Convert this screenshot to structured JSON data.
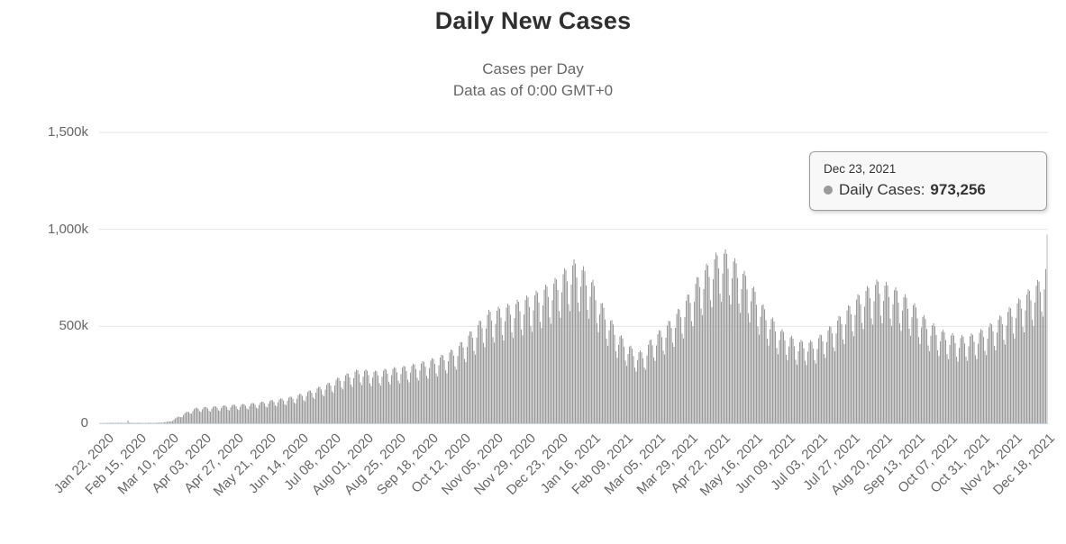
{
  "header": {
    "title": "Daily New Cases",
    "subtitle_line1": "Cases per Day",
    "subtitle_line2": "Data as of 0:00 GMT+0"
  },
  "tooltip": {
    "date": "Dec 23, 2021",
    "series_label": "Daily Cases:",
    "value": "973,256",
    "marker_color": "#9a9a9a"
  },
  "chart_data": {
    "type": "bar",
    "title": "Daily New Cases",
    "subtitle": [
      "Cases per Day",
      "Data as of 0:00 GMT+0"
    ],
    "legend": false,
    "grid": true,
    "series": [
      {
        "name": "Daily Cases"
      }
    ],
    "y_axis": {
      "min": 0,
      "max": 1500000,
      "ticks": [
        {
          "label": "0",
          "value": 0
        },
        {
          "label": "500k",
          "value": 500000
        },
        {
          "label": "1,000k",
          "value": 1000000
        },
        {
          "label": "1,500k",
          "value": 1500000
        }
      ]
    },
    "x_axis": {
      "start_date": "Jan 22, 2020",
      "end_date": "Dec 23, 2021",
      "total_days": 702,
      "tick_interval_days": 24,
      "tick_labels": [
        "Jan 22, 2020",
        "Feb 15, 2020",
        "Mar 10, 2020",
        "Apr 03, 2020",
        "Apr 27, 2020",
        "May 21, 2020",
        "Jun 14, 2020",
        "Jul 08, 2020",
        "Aug 01, 2020",
        "Aug 25, 2020",
        "Sep 18, 2020",
        "Oct 12, 2020",
        "Nov 05, 2020",
        "Nov 29, 2020",
        "Dec 23, 2020",
        "Jan 16, 2021",
        "Feb 09, 2021",
        "Mar 05, 2021",
        "Mar 29, 2021",
        "Apr 22, 2021",
        "May 16, 2021",
        "Jun 09, 2021",
        "Jul 03, 2021",
        "Jul 27, 2021",
        "Aug 20, 2021",
        "Sep 13, 2021",
        "Oct 07, 2021",
        "Oct 31, 2021",
        "Nov 24, 2021",
        "Dec 18, 2021"
      ]
    },
    "envelope_anchors": [
      [
        0,
        800
      ],
      [
        8,
        2800
      ],
      [
        20,
        2600
      ],
      [
        21,
        15200
      ],
      [
        22,
        2600
      ],
      [
        34,
        2200
      ],
      [
        45,
        3500
      ],
      [
        52,
        10000
      ],
      [
        60,
        42000
      ],
      [
        66,
        65000
      ],
      [
        72,
        82000
      ],
      [
        82,
        86000
      ],
      [
        96,
        95000
      ],
      [
        110,
        102000
      ],
      [
        120,
        112000
      ],
      [
        134,
        128000
      ],
      [
        144,
        142000
      ],
      [
        156,
        172000
      ],
      [
        168,
        205000
      ],
      [
        180,
        250000
      ],
      [
        192,
        282000
      ],
      [
        204,
        272000
      ],
      [
        216,
        288000
      ],
      [
        228,
        300000
      ],
      [
        240,
        322000
      ],
      [
        252,
        350000
      ],
      [
        264,
        395000
      ],
      [
        276,
        490000
      ],
      [
        288,
        585000
      ],
      [
        300,
        612000
      ],
      [
        312,
        645000
      ],
      [
        324,
        688000
      ],
      [
        336,
        742000
      ],
      [
        344,
        800000
      ],
      [
        351,
        845000
      ],
      [
        358,
        810000
      ],
      [
        365,
        740000
      ],
      [
        372,
        620000
      ],
      [
        384,
        470000
      ],
      [
        395,
        385000
      ],
      [
        402,
        372000
      ],
      [
        408,
        440000
      ],
      [
        420,
        520000
      ],
      [
        432,
        625000
      ],
      [
        444,
        780000
      ],
      [
        456,
        880000
      ],
      [
        462,
        902000
      ],
      [
        468,
        870000
      ],
      [
        480,
        758000
      ],
      [
        492,
        600000
      ],
      [
        504,
        490000
      ],
      [
        516,
        432000
      ],
      [
        528,
        428000
      ],
      [
        540,
        500000
      ],
      [
        552,
        592000
      ],
      [
        564,
        690000
      ],
      [
        576,
        745000
      ],
      [
        586,
        718000
      ],
      [
        600,
        645000
      ],
      [
        612,
        540000
      ],
      [
        624,
        482000
      ],
      [
        636,
        452000
      ],
      [
        648,
        468000
      ],
      [
        660,
        520000
      ],
      [
        672,
        592000
      ],
      [
        684,
        670000
      ],
      [
        696,
        752000
      ],
      [
        700,
        820000
      ],
      [
        701,
        973256
      ]
    ],
    "weekly_pattern": [
      0.97,
      1.0,
      0.98,
      0.9,
      0.75,
      0.7,
      0.86
    ],
    "last_point": {
      "date": "Dec 23, 2021",
      "value": 973256,
      "highlighted": true
    },
    "colors": {
      "bar": "#9a9a9a",
      "bar_hover": "#bcbcbc",
      "grid": "#e6e6e6",
      "axis_line": "#ccd6eb",
      "tick_label": "#666666",
      "title": "#2f2f2f",
      "subtitle": "#666666"
    }
  }
}
